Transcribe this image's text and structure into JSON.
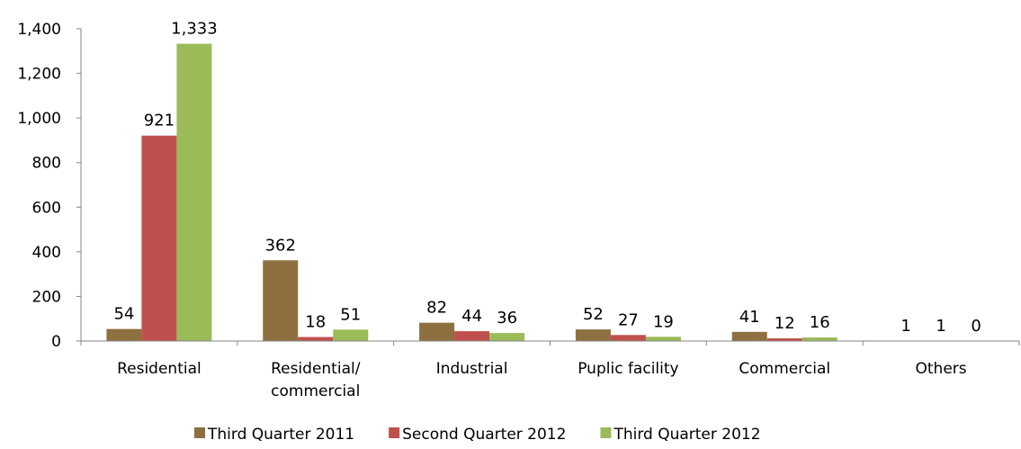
{
  "chart_data": {
    "type": "bar",
    "title": "",
    "xlabel": "",
    "ylabel": "",
    "categories": [
      [
        "Residential"
      ],
      [
        "Residential/",
        "commercial"
      ],
      [
        "Industrial"
      ],
      [
        "Puplic facility"
      ],
      [
        "Commercial"
      ],
      [
        "Others"
      ]
    ],
    "series": [
      {
        "name": "Third Quarter 2011",
        "color": "#8e7040",
        "values": [
          54,
          362,
          82,
          52,
          41,
          1
        ]
      },
      {
        "name": "Second Quarter 2012",
        "color": "#c0504d",
        "values": [
          921,
          18,
          44,
          27,
          12,
          1
        ]
      },
      {
        "name": "Third Quarter 2012",
        "color": "#9bbb59",
        "values": [
          1333,
          51,
          36,
          19,
          16,
          0
        ]
      }
    ],
    "ylim": [
      0,
      1400
    ],
    "yticks": [
      0,
      200,
      400,
      600,
      800,
      1000,
      1200,
      1400
    ],
    "ytick_labels": [
      "0",
      "200",
      "400",
      "600",
      "800",
      "1,000",
      "1,200",
      "1,400"
    ],
    "grid": false,
    "legend": "bottom"
  }
}
